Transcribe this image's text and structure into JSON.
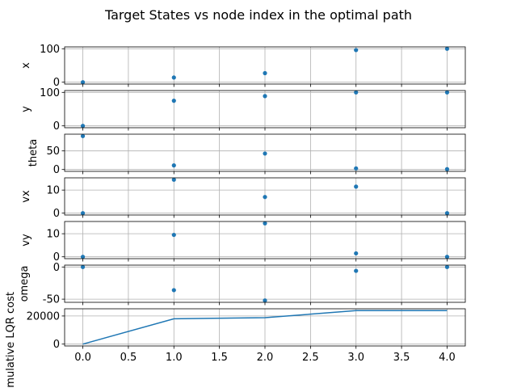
{
  "chart_data": {
    "title": "Target States vs node index in the optimal path",
    "type": "scatter",
    "grid": true,
    "x": [
      0,
      1,
      2,
      3,
      4
    ],
    "xlim": [
      -0.2,
      4.2
    ],
    "xticks": [
      0.0,
      0.5,
      1.0,
      1.5,
      2.0,
      2.5,
      3.0,
      3.5,
      4.0
    ],
    "xtick_labels": [
      "0.0",
      "0.5",
      "1.0",
      "1.5",
      "2.0",
      "2.5",
      "3.0",
      "3.5",
      "4.0"
    ],
    "color": "#1f77b4",
    "panels": [
      {
        "ylabel": "x",
        "type": "scatter",
        "values": [
          0,
          14,
          27,
          96,
          100
        ],
        "ylim": [
          0,
          100
        ],
        "yticks": [
          0,
          100
        ]
      },
      {
        "ylabel": "y",
        "type": "scatter",
        "values": [
          0,
          75,
          89,
          100,
          100
        ],
        "ylim": [
          0,
          100
        ],
        "yticks": [
          0,
          100
        ]
      },
      {
        "ylabel": "theta",
        "type": "scatter",
        "values": [
          90,
          11,
          43,
          3,
          1
        ],
        "ylim": [
          0,
          90
        ],
        "yticks": [
          0,
          50
        ]
      },
      {
        "ylabel": "vx",
        "type": "scatter",
        "values": [
          0,
          14.5,
          7,
          11.5,
          0
        ],
        "ylim": [
          0,
          14.5
        ],
        "yticks": [
          0,
          10
        ]
      },
      {
        "ylabel": "vy",
        "type": "scatter",
        "values": [
          0,
          9.5,
          14.5,
          1.5,
          0
        ],
        "ylim": [
          0,
          14.5
        ],
        "yticks": [
          0,
          10
        ]
      },
      {
        "ylabel": "omega",
        "type": "scatter",
        "values": [
          0,
          -36,
          -52,
          -6,
          0
        ],
        "ylim": [
          -52,
          0
        ],
        "yticks": [
          0,
          -50
        ]
      },
      {
        "ylabel": "Cumulative LQR cost",
        "type": "line",
        "values": [
          0,
          18000,
          18800,
          23800,
          23800
        ],
        "ylim": [
          0,
          23800
        ],
        "yticks": [
          0,
          20000
        ]
      }
    ]
  }
}
